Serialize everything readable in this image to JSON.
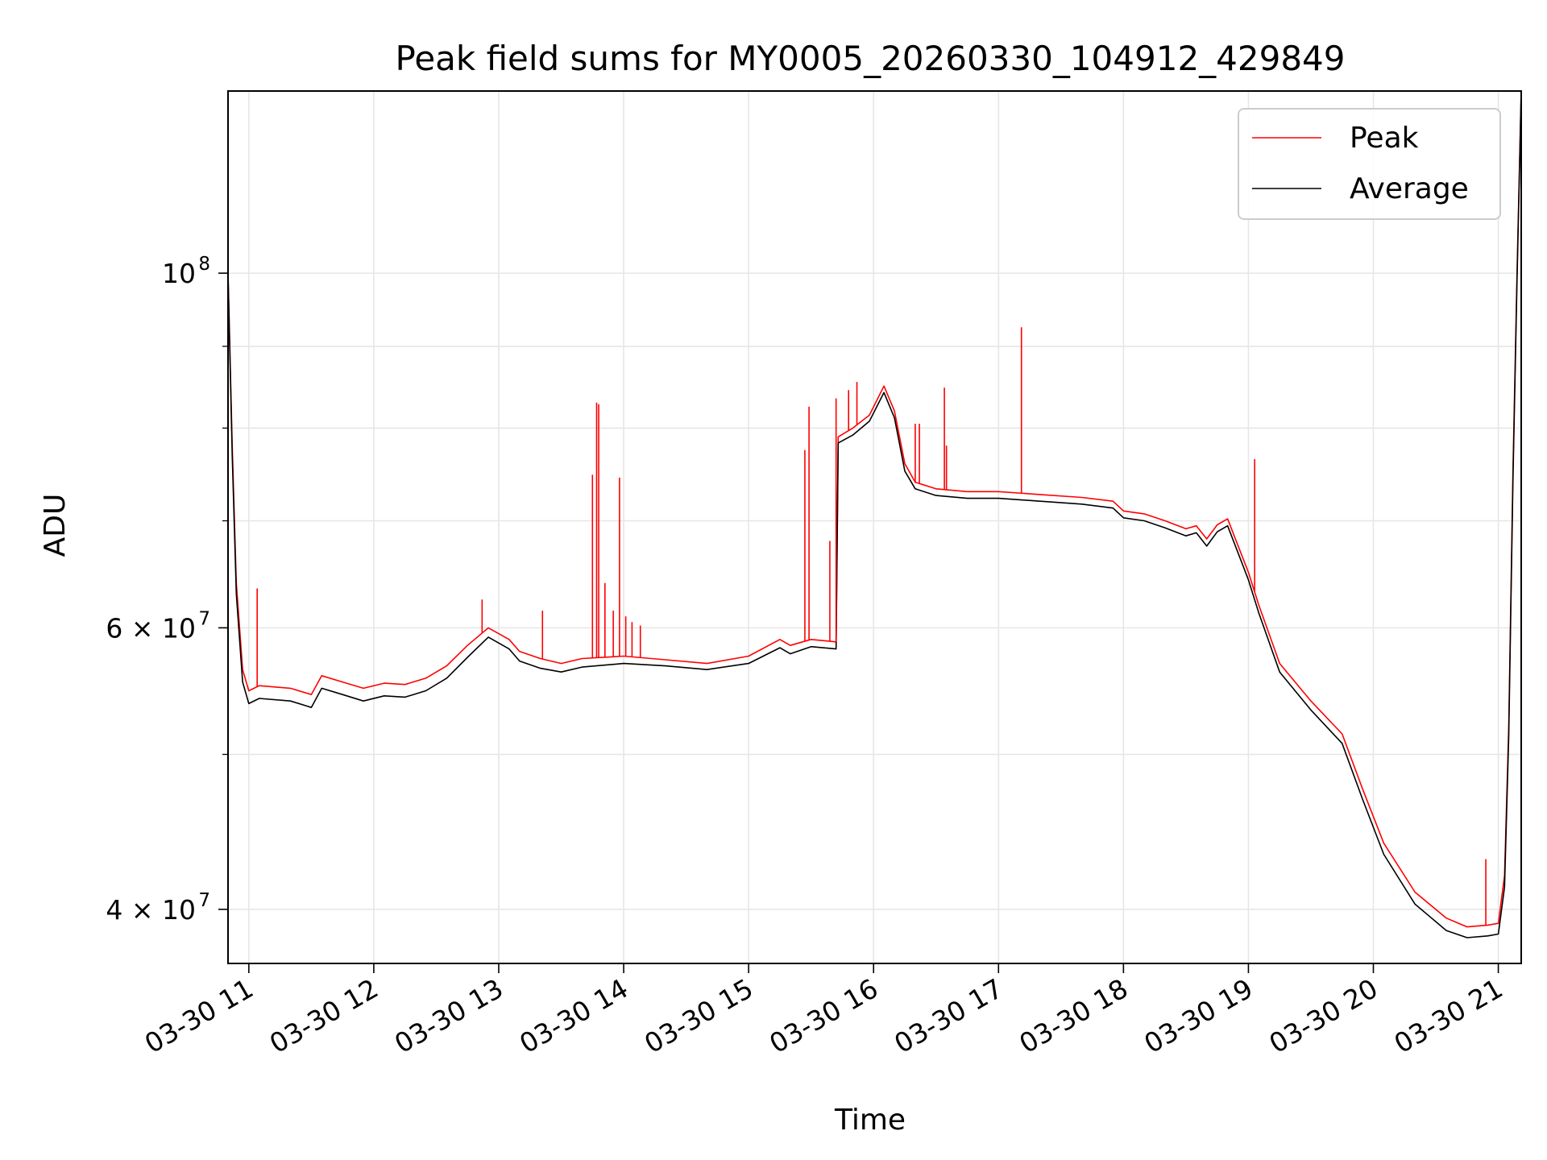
{
  "chart_data": {
    "type": "line",
    "title": "Peak field sums for MY0005_20260330_104912_429849",
    "xlabel": "Time",
    "ylabel": "ADU",
    "y_scale": "log",
    "ylim": [
      37000000,
      130000000
    ],
    "xlim": [
      "2026-03-30 10:50",
      "2026-03-30 21:11"
    ],
    "grid": true,
    "legend": "upper right",
    "x_ticks": [
      {
        "value": "2026-03-30 11:00",
        "label": "03-30 11"
      },
      {
        "value": "2026-03-30 12:00",
        "label": "03-30 12"
      },
      {
        "value": "2026-03-30 13:00",
        "label": "03-30 13"
      },
      {
        "value": "2026-03-30 14:00",
        "label": "03-30 14"
      },
      {
        "value": "2026-03-30 15:00",
        "label": "03-30 15"
      },
      {
        "value": "2026-03-30 16:00",
        "label": "03-30 16"
      },
      {
        "value": "2026-03-30 17:00",
        "label": "03-30 17"
      },
      {
        "value": "2026-03-30 18:00",
        "label": "03-30 18"
      },
      {
        "value": "2026-03-30 19:00",
        "label": "03-30 19"
      },
      {
        "value": "2026-03-30 20:00",
        "label": "03-30 20"
      },
      {
        "value": "2026-03-30 21:00",
        "label": "03-30 21"
      }
    ],
    "y_ticks_major": [
      {
        "value": 40000000,
        "base": "4 × 10",
        "exp": "7"
      },
      {
        "value": 60000000,
        "base": "6 × 10",
        "exp": "7"
      },
      {
        "value": 100000000,
        "base": "10",
        "exp": "8"
      }
    ],
    "y_ticks_minor": [
      50000000,
      70000000,
      80000000,
      90000000
    ],
    "series": [
      {
        "name": "Peak",
        "color": "#ff0000",
        "x": [
          "2026-03-30 10:50",
          "2026-03-30 10:52",
          "2026-03-30 10:54",
          "2026-03-30 10:57",
          "2026-03-30 11:00",
          "2026-03-30 11:05",
          "2026-03-30 11:20",
          "2026-03-30 11:30",
          "2026-03-30 11:35",
          "2026-03-30 11:45",
          "2026-03-30 11:55",
          "2026-03-30 12:05",
          "2026-03-30 12:15",
          "2026-03-30 12:25",
          "2026-03-30 12:35",
          "2026-03-30 12:45",
          "2026-03-30 12:55",
          "2026-03-30 13:05",
          "2026-03-30 13:10",
          "2026-03-30 13:20",
          "2026-03-30 13:30",
          "2026-03-30 13:40",
          "2026-03-30 14:00",
          "2026-03-30 14:20",
          "2026-03-30 14:40",
          "2026-03-30 15:00",
          "2026-03-30 15:15",
          "2026-03-30 15:20",
          "2026-03-30 15:30",
          "2026-03-30 15:42",
          "2026-03-30 15:43",
          "2026-03-30 15:50",
          "2026-03-30 15:58",
          "2026-03-30 16:05",
          "2026-03-30 16:10",
          "2026-03-30 16:15",
          "2026-03-30 16:20",
          "2026-03-30 16:30",
          "2026-03-30 16:45",
          "2026-03-30 17:00",
          "2026-03-30 17:20",
          "2026-03-30 17:40",
          "2026-03-30 17:55",
          "2026-03-30 18:00",
          "2026-03-30 18:10",
          "2026-03-30 18:20",
          "2026-03-30 18:30",
          "2026-03-30 18:35",
          "2026-03-30 18:40",
          "2026-03-30 18:45",
          "2026-03-30 18:50",
          "2026-03-30 19:00",
          "2026-03-30 19:05",
          "2026-03-30 19:15",
          "2026-03-30 19:30",
          "2026-03-30 19:45",
          "2026-03-30 19:55",
          "2026-03-30 20:05",
          "2026-03-30 20:20",
          "2026-03-30 20:35",
          "2026-03-30 20:45",
          "2026-03-30 20:55",
          "2026-03-30 21:00",
          "2026-03-30 21:03",
          "2026-03-30 21:05",
          "2026-03-30 21:07",
          "2026-03-30 21:09",
          "2026-03-30 21:11"
        ],
        "values": [
          100000000,
          78000000,
          64000000,
          56500000,
          54800000,
          55200000,
          55000000,
          54500000,
          56000000,
          55500000,
          55000000,
          55400000,
          55300000,
          55800000,
          56800000,
          58500000,
          60000000,
          59000000,
          58000000,
          57400000,
          57000000,
          57400000,
          57600000,
          57300000,
          57000000,
          57600000,
          59000000,
          58500000,
          59000000,
          58800000,
          79000000,
          80000000,
          81500000,
          85000000,
          82000000,
          76000000,
          74000000,
          73300000,
          73000000,
          73000000,
          72700000,
          72400000,
          72000000,
          71000000,
          70700000,
          70000000,
          69200000,
          69500000,
          68200000,
          69600000,
          70200000,
          65000000,
          62000000,
          57000000,
          54000000,
          51500000,
          47500000,
          44000000,
          41000000,
          39500000,
          39000000,
          39100000,
          39200000,
          42000000,
          52000000,
          75000000,
          100000000,
          130000000
        ]
      },
      {
        "name": "Average",
        "color": "#000000",
        "x": [
          "2026-03-30 10:50",
          "2026-03-30 10:52",
          "2026-03-30 10:54",
          "2026-03-30 10:57",
          "2026-03-30 11:00",
          "2026-03-30 11:05",
          "2026-03-30 11:20",
          "2026-03-30 11:30",
          "2026-03-30 11:35",
          "2026-03-30 11:45",
          "2026-03-30 11:55",
          "2026-03-30 12:05",
          "2026-03-30 12:15",
          "2026-03-30 12:25",
          "2026-03-30 12:35",
          "2026-03-30 12:45",
          "2026-03-30 12:55",
          "2026-03-30 13:05",
          "2026-03-30 13:10",
          "2026-03-30 13:20",
          "2026-03-30 13:30",
          "2026-03-30 13:40",
          "2026-03-30 14:00",
          "2026-03-30 14:20",
          "2026-03-30 14:40",
          "2026-03-30 15:00",
          "2026-03-30 15:15",
          "2026-03-30 15:20",
          "2026-03-30 15:30",
          "2026-03-30 15:42",
          "2026-03-30 15:43",
          "2026-03-30 15:50",
          "2026-03-30 15:58",
          "2026-03-30 16:05",
          "2026-03-30 16:10",
          "2026-03-30 16:15",
          "2026-03-30 16:20",
          "2026-03-30 16:30",
          "2026-03-30 16:45",
          "2026-03-30 17:00",
          "2026-03-30 17:20",
          "2026-03-30 17:40",
          "2026-03-30 17:55",
          "2026-03-30 18:00",
          "2026-03-30 18:10",
          "2026-03-30 18:20",
          "2026-03-30 18:30",
          "2026-03-30 18:35",
          "2026-03-30 18:40",
          "2026-03-30 18:45",
          "2026-03-30 18:50",
          "2026-03-30 19:00",
          "2026-03-30 19:05",
          "2026-03-30 19:15",
          "2026-03-30 19:30",
          "2026-03-30 19:45",
          "2026-03-30 19:55",
          "2026-03-30 20:05",
          "2026-03-30 20:20",
          "2026-03-30 20:35",
          "2026-03-30 20:45",
          "2026-03-30 20:55",
          "2026-03-30 21:00",
          "2026-03-30 21:03",
          "2026-03-30 21:05",
          "2026-03-30 21:07",
          "2026-03-30 21:09",
          "2026-03-30 21:11"
        ],
        "values": [
          100000000,
          77000000,
          63000000,
          55500000,
          53800000,
          54200000,
          54000000,
          53500000,
          55000000,
          54500000,
          54000000,
          54400000,
          54300000,
          54800000,
          55800000,
          57500000,
          59200000,
          58200000,
          57200000,
          56600000,
          56300000,
          56700000,
          57000000,
          56800000,
          56500000,
          57000000,
          58300000,
          57800000,
          58400000,
          58200000,
          78300000,
          79200000,
          80800000,
          84200000,
          81200000,
          75200000,
          73300000,
          72600000,
          72300000,
          72300000,
          72000000,
          71700000,
          71300000,
          70300000,
          70000000,
          69300000,
          68500000,
          68800000,
          67500000,
          68900000,
          69500000,
          64300000,
          61300000,
          56300000,
          53300000,
          50800000,
          46800000,
          43300000,
          40300000,
          38800000,
          38400000,
          38500000,
          38600000,
          41300000,
          51300000,
          74000000,
          99000000,
          130000000
        ]
      }
    ],
    "spikes": [
      {
        "x": "2026-03-30 11:04",
        "value": 63500000
      },
      {
        "x": "2026-03-30 12:52",
        "value": 62500000
      },
      {
        "x": "2026-03-30 13:21",
        "value": 61500000
      },
      {
        "x": "2026-03-30 13:45",
        "value": 74800000
      },
      {
        "x": "2026-03-30 13:47",
        "value": 83000000
      },
      {
        "x": "2026-03-30 13:48",
        "value": 82800000
      },
      {
        "x": "2026-03-30 13:51",
        "value": 64000000
      },
      {
        "x": "2026-03-30 13:55",
        "value": 61500000
      },
      {
        "x": "2026-03-30 13:58",
        "value": 74500000
      },
      {
        "x": "2026-03-30 14:01",
        "value": 61000000
      },
      {
        "x": "2026-03-30 14:04",
        "value": 60500000
      },
      {
        "x": "2026-03-30 14:08",
        "value": 60200000
      },
      {
        "x": "2026-03-30 15:27",
        "value": 77500000
      },
      {
        "x": "2026-03-30 15:29",
        "value": 82500000
      },
      {
        "x": "2026-03-30 15:39",
        "value": 68000000
      },
      {
        "x": "2026-03-30 15:42",
        "value": 83500000
      },
      {
        "x": "2026-03-30 15:48",
        "value": 84500000
      },
      {
        "x": "2026-03-30 15:52",
        "value": 85500000
      },
      {
        "x": "2026-03-30 16:20",
        "value": 80500000
      },
      {
        "x": "2026-03-30 16:22",
        "value": 80500000
      },
      {
        "x": "2026-03-30 16:34",
        "value": 84800000
      },
      {
        "x": "2026-03-30 16:35",
        "value": 78000000
      },
      {
        "x": "2026-03-30 17:11",
        "value": 92500000
      },
      {
        "x": "2026-03-30 19:03",
        "value": 76500000
      },
      {
        "x": "2026-03-30 20:54",
        "value": 43000000
      }
    ]
  }
}
